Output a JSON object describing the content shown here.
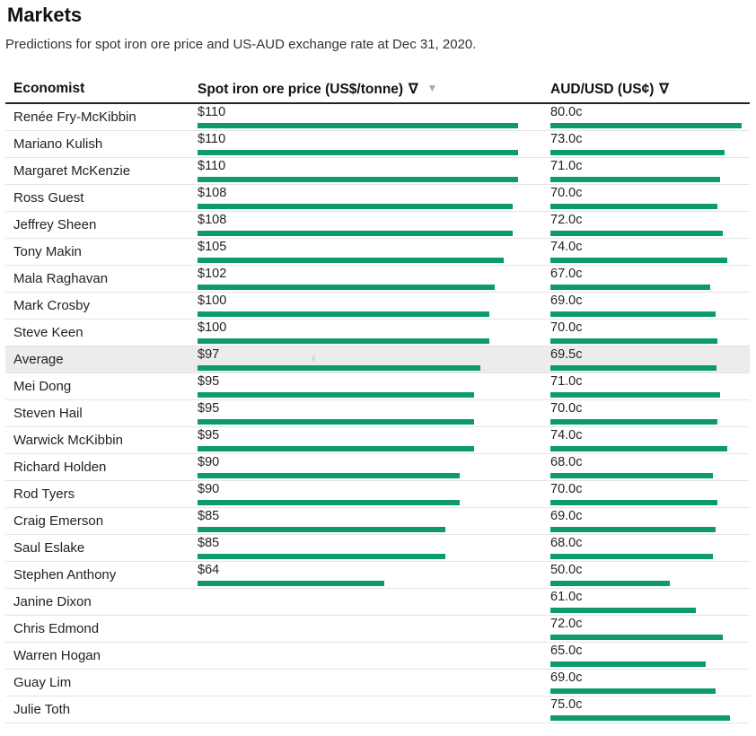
{
  "title": "Markets",
  "subtitle": "Predictions for spot iron ore price and US-AUD exchange rate at Dec 31, 2020.",
  "header": {
    "economist": "Economist",
    "iron_ore": "Spot iron ore price (US$/tonne)",
    "aud": "AUD/USD (US¢)",
    "sort_glyph": "∇",
    "sort_active_glyph": "▼"
  },
  "colors": {
    "bar": "#0d9b6b",
    "average_row": "#ececec"
  },
  "chart_data": {
    "type": "table",
    "columns": [
      "Economist",
      "Spot iron ore price (US$/tonne)",
      "AUD/USD (US¢)"
    ],
    "rows": [
      {
        "economist": "Renée Fry-McKibbin",
        "iron_ore": 110,
        "iron_ore_label": "$110",
        "aud": 80.0,
        "aud_label": "80.0c"
      },
      {
        "economist": "Mariano Kulish",
        "iron_ore": 110,
        "iron_ore_label": "$110",
        "aud": 73.0,
        "aud_label": "73.0c"
      },
      {
        "economist": "Margaret McKenzie",
        "iron_ore": 110,
        "iron_ore_label": "$110",
        "aud": 71.0,
        "aud_label": "71.0c"
      },
      {
        "economist": "Ross Guest",
        "iron_ore": 108,
        "iron_ore_label": "$108",
        "aud": 70.0,
        "aud_label": "70.0c"
      },
      {
        "economist": "Jeffrey Sheen",
        "iron_ore": 108,
        "iron_ore_label": "$108",
        "aud": 72.0,
        "aud_label": "72.0c"
      },
      {
        "economist": "Tony Makin",
        "iron_ore": 105,
        "iron_ore_label": "$105",
        "aud": 74.0,
        "aud_label": "74.0c"
      },
      {
        "economist": "Mala Raghavan",
        "iron_ore": 102,
        "iron_ore_label": "$102",
        "aud": 67.0,
        "aud_label": "67.0c"
      },
      {
        "economist": "Mark Crosby",
        "iron_ore": 100,
        "iron_ore_label": "$100",
        "aud": 69.0,
        "aud_label": "69.0c"
      },
      {
        "economist": "Steve Keen",
        "iron_ore": 100,
        "iron_ore_label": "$100",
        "aud": 70.0,
        "aud_label": "70.0c"
      },
      {
        "economist": "Average",
        "iron_ore": 97,
        "iron_ore_label": "$97",
        "aud": 69.5,
        "aud_label": "69.5c",
        "average": true
      },
      {
        "economist": "Mei Dong",
        "iron_ore": 95,
        "iron_ore_label": "$95",
        "aud": 71.0,
        "aud_label": "71.0c"
      },
      {
        "economist": "Steven Hail",
        "iron_ore": 95,
        "iron_ore_label": "$95",
        "aud": 70.0,
        "aud_label": "70.0c"
      },
      {
        "economist": "Warwick McKibbin",
        "iron_ore": 95,
        "iron_ore_label": "$95",
        "aud": 74.0,
        "aud_label": "74.0c"
      },
      {
        "economist": "Richard Holden",
        "iron_ore": 90,
        "iron_ore_label": "$90",
        "aud": 68.0,
        "aud_label": "68.0c"
      },
      {
        "economist": "Rod Tyers",
        "iron_ore": 90,
        "iron_ore_label": "$90",
        "aud": 70.0,
        "aud_label": "70.0c"
      },
      {
        "economist": "Craig Emerson",
        "iron_ore": 85,
        "iron_ore_label": "$85",
        "aud": 69.0,
        "aud_label": "69.0c"
      },
      {
        "economist": "Saul Eslake",
        "iron_ore": 85,
        "iron_ore_label": "$85",
        "aud": 68.0,
        "aud_label": "68.0c"
      },
      {
        "economist": "Stephen Anthony",
        "iron_ore": 64,
        "iron_ore_label": "$64",
        "aud": 50.0,
        "aud_label": "50.0c"
      },
      {
        "economist": "Janine Dixon",
        "iron_ore": null,
        "iron_ore_label": "",
        "aud": 61.0,
        "aud_label": "61.0c"
      },
      {
        "economist": "Chris Edmond",
        "iron_ore": null,
        "iron_ore_label": "",
        "aud": 72.0,
        "aud_label": "72.0c"
      },
      {
        "economist": "Warren Hogan",
        "iron_ore": null,
        "iron_ore_label": "",
        "aud": 65.0,
        "aud_label": "65.0c"
      },
      {
        "economist": "Guay Lim",
        "iron_ore": null,
        "iron_ore_label": "",
        "aud": 69.0,
        "aud_label": "69.0c"
      },
      {
        "economist": "Julie Toth",
        "iron_ore": null,
        "iron_ore_label": "",
        "aud": 75.0,
        "aud_label": "75.0c"
      }
    ]
  }
}
